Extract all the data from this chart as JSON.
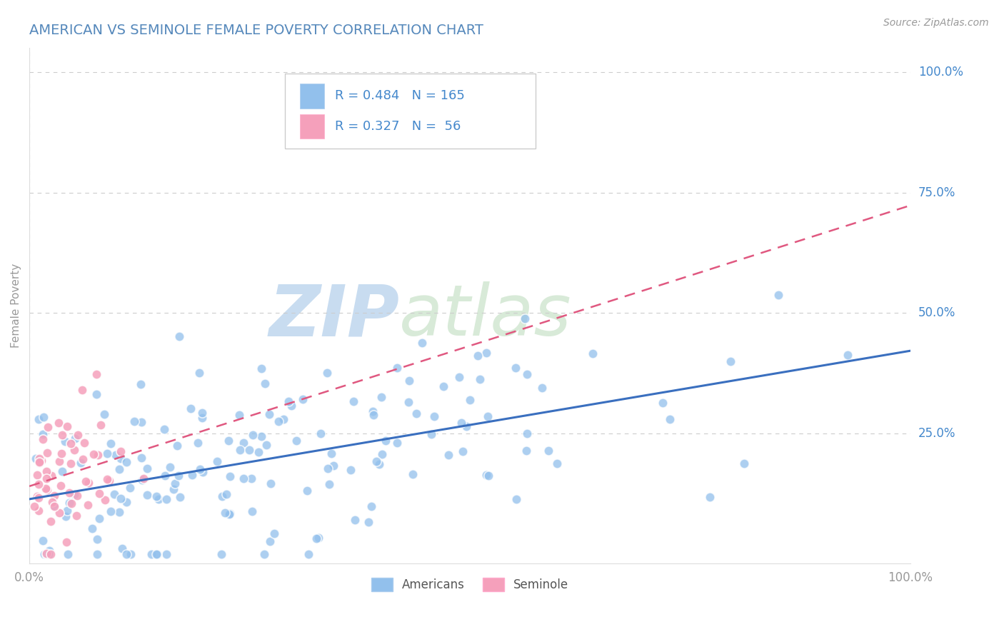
{
  "title": "AMERICAN VS SEMINOLE FEMALE POVERTY CORRELATION CHART",
  "source_text": "Source: ZipAtlas.com",
  "ylabel": "Female Poverty",
  "xlim": [
    0.0,
    1.0
  ],
  "ylim": [
    -0.02,
    1.05
  ],
  "x_tick_labels": [
    "0.0%",
    "100.0%"
  ],
  "y_tick_labels": [
    "25.0%",
    "50.0%",
    "75.0%",
    "100.0%"
  ],
  "y_tick_positions": [
    0.25,
    0.5,
    0.75,
    1.0
  ],
  "legend_label1": "Americans",
  "legend_label2": "Seminole",
  "R1": 0.484,
  "N1": 165,
  "R2": 0.327,
  "N2": 56,
  "color_americans": "#92C0EC",
  "color_seminole": "#F5A0BB",
  "line_color_americans": "#3A6FBF",
  "line_color_seminole": "#E05880",
  "watermark_color": "#D8E8F5",
  "background_color": "#FFFFFF",
  "grid_color": "#CCCCCC",
  "title_color": "#5588BB",
  "legend_text_color": "#4488CC",
  "axis_label_color": "#999999",
  "source_color": "#999999"
}
